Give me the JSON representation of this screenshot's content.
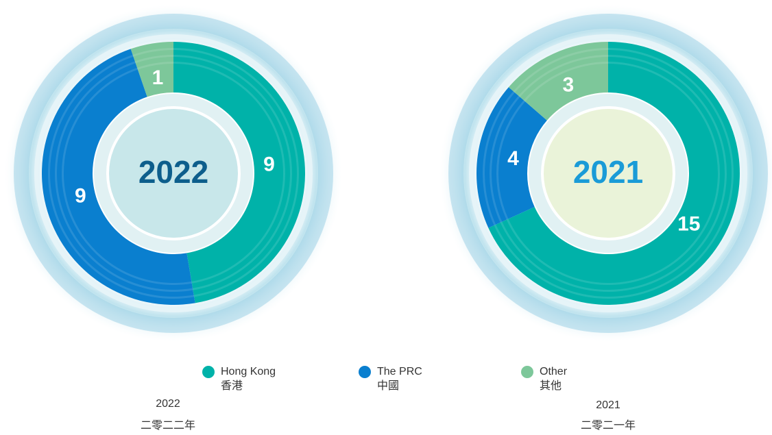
{
  "chart_data": [
    {
      "type": "donut",
      "center_label": "2022",
      "caption": "2022",
      "caption_cn": "二零二二年",
      "values": [
        9,
        9,
        1
      ],
      "center_color": "#c8e7ea",
      "center_text_color": "#0d5e8c"
    },
    {
      "type": "donut",
      "center_label": "2021",
      "caption": "2021",
      "caption_cn": "二零二一年",
      "values": [
        15,
        4,
        3
      ],
      "center_color": "#eaf3d9",
      "center_text_color": "#1a9bd7"
    }
  ],
  "legend": {
    "entries": [
      {
        "name": "Hong Kong",
        "name_cn": "香港",
        "color": "#00b2a9"
      },
      {
        "name": "The PRC",
        "name_cn": "中國",
        "color": "#0a7fcf"
      },
      {
        "name": "Other",
        "name_cn": "其他",
        "color": "#7dc79a"
      }
    ]
  }
}
